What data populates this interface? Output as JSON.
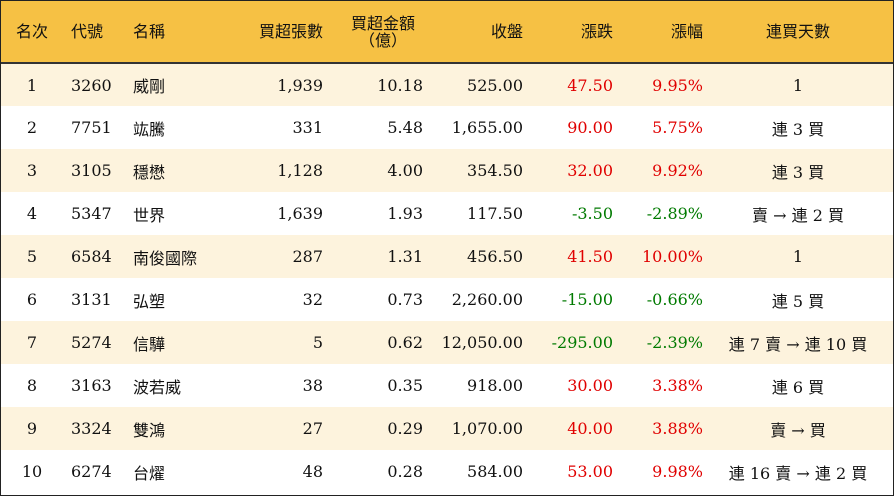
{
  "table": {
    "headers": {
      "rank": "名次",
      "code": "代號",
      "name": "名稱",
      "net_buy_lots": "買超張數",
      "net_buy_amount_line1": "買超金額",
      "net_buy_amount_line2": "（億）",
      "close": "收盤",
      "change": "漲跌",
      "change_pct": "漲幅",
      "consecutive_days": "連買天數"
    },
    "rows": [
      {
        "rank": "1",
        "code": "3260",
        "name": "威剛",
        "net_buy_lots": "1,939",
        "net_buy_amount": "10.18",
        "close": "525.00",
        "change": "47.50",
        "change_pct": "9.95%",
        "direction": "up",
        "consecutive_days": "1"
      },
      {
        "rank": "2",
        "code": "7751",
        "name": "竑騰",
        "net_buy_lots": "331",
        "net_buy_amount": "5.48",
        "close": "1,655.00",
        "change": "90.00",
        "change_pct": "5.75%",
        "direction": "up",
        "consecutive_days": "連 3 買"
      },
      {
        "rank": "3",
        "code": "3105",
        "name": "穩懋",
        "net_buy_lots": "1,128",
        "net_buy_amount": "4.00",
        "close": "354.50",
        "change": "32.00",
        "change_pct": "9.92%",
        "direction": "up",
        "consecutive_days": "連 3 買"
      },
      {
        "rank": "4",
        "code": "5347",
        "name": "世界",
        "net_buy_lots": "1,639",
        "net_buy_amount": "1.93",
        "close": "117.50",
        "change": "-3.50",
        "change_pct": "-2.89%",
        "direction": "down",
        "consecutive_days": "賣 → 連 2 買"
      },
      {
        "rank": "5",
        "code": "6584",
        "name": "南俊國際",
        "net_buy_lots": "287",
        "net_buy_amount": "1.31",
        "close": "456.50",
        "change": "41.50",
        "change_pct": "10.00%",
        "direction": "up",
        "consecutive_days": "1"
      },
      {
        "rank": "6",
        "code": "3131",
        "name": "弘塑",
        "net_buy_lots": "32",
        "net_buy_amount": "0.73",
        "close": "2,260.00",
        "change": "-15.00",
        "change_pct": "-0.66%",
        "direction": "down",
        "consecutive_days": "連 5 買"
      },
      {
        "rank": "7",
        "code": "5274",
        "name": "信驊",
        "net_buy_lots": "5",
        "net_buy_amount": "0.62",
        "close": "12,050.00",
        "change": "-295.00",
        "change_pct": "-2.39%",
        "direction": "down",
        "consecutive_days": "連 7 賣 → 連 10 買"
      },
      {
        "rank": "8",
        "code": "3163",
        "name": "波若威",
        "net_buy_lots": "38",
        "net_buy_amount": "0.35",
        "close": "918.00",
        "change": "30.00",
        "change_pct": "3.38%",
        "direction": "up",
        "consecutive_days": "連 6 買"
      },
      {
        "rank": "9",
        "code": "3324",
        "name": "雙鴻",
        "net_buy_lots": "27",
        "net_buy_amount": "0.29",
        "close": "1,070.00",
        "change": "40.00",
        "change_pct": "3.88%",
        "direction": "up",
        "consecutive_days": "賣 → 買"
      },
      {
        "rank": "10",
        "code": "6274",
        "name": "台燿",
        "net_buy_lots": "48",
        "net_buy_amount": "0.28",
        "close": "584.00",
        "change": "53.00",
        "change_pct": "9.98%",
        "direction": "up",
        "consecutive_days": "連 16 賣 → 連 2 買"
      }
    ]
  },
  "colors": {
    "header_bg": "#f6c144",
    "alt_row_bg": "#fdf3dd",
    "up": "#e00000",
    "down": "#007a00"
  }
}
